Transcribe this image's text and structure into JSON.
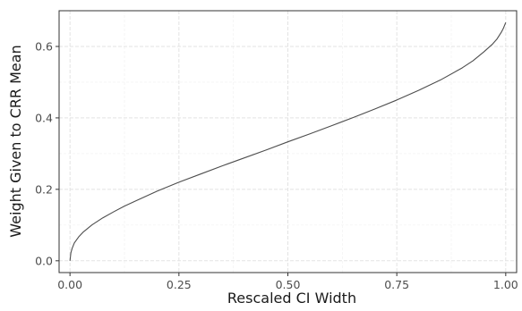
{
  "chart_data": {
    "type": "line",
    "xlabel": "Rescaled CI Width",
    "ylabel": "Weight Given to CRR Mean",
    "xlim": [
      -0.025,
      1.025
    ],
    "ylim": [
      -0.033,
      0.7
    ],
    "x_ticks": [
      {
        "value": 0.0,
        "label": "0.00"
      },
      {
        "value": 0.25,
        "label": "0.25"
      },
      {
        "value": 0.5,
        "label": "0.50"
      },
      {
        "value": 0.75,
        "label": "0.75"
      },
      {
        "value": 1.0,
        "label": "1.00"
      }
    ],
    "y_ticks": [
      {
        "value": 0.0,
        "label": "0.0"
      },
      {
        "value": 0.2,
        "label": "0.2"
      },
      {
        "value": 0.4,
        "label": "0.4"
      },
      {
        "value": 0.6,
        "label": "0.6"
      }
    ],
    "x_minor_ticks": [
      0.125,
      0.375,
      0.625,
      0.875
    ],
    "y_minor_ticks": [
      0.1,
      0.3,
      0.5
    ],
    "grid": true,
    "series": [
      {
        "color": "#4d4d4d",
        "x": [
          0.0,
          0.002,
          0.005,
          0.01,
          0.02,
          0.03,
          0.05,
          0.075,
          0.1,
          0.125,
          0.15,
          0.2,
          0.25,
          0.3,
          0.35,
          0.4,
          0.45,
          0.5,
          0.55,
          0.6,
          0.65,
          0.7,
          0.75,
          0.8,
          0.85,
          0.9,
          0.925,
          0.95,
          0.97,
          0.98,
          0.99,
          0.995,
          1.0
        ],
        "y": [
          0.0,
          0.022,
          0.035,
          0.05,
          0.067,
          0.08,
          0.1,
          0.12,
          0.137,
          0.153,
          0.167,
          0.195,
          0.22,
          0.243,
          0.266,
          0.288,
          0.31,
          0.333,
          0.355,
          0.378,
          0.401,
          0.425,
          0.45,
          0.477,
          0.506,
          0.54,
          0.56,
          0.585,
          0.607,
          0.621,
          0.64,
          0.652,
          0.667
        ]
      }
    ]
  }
}
